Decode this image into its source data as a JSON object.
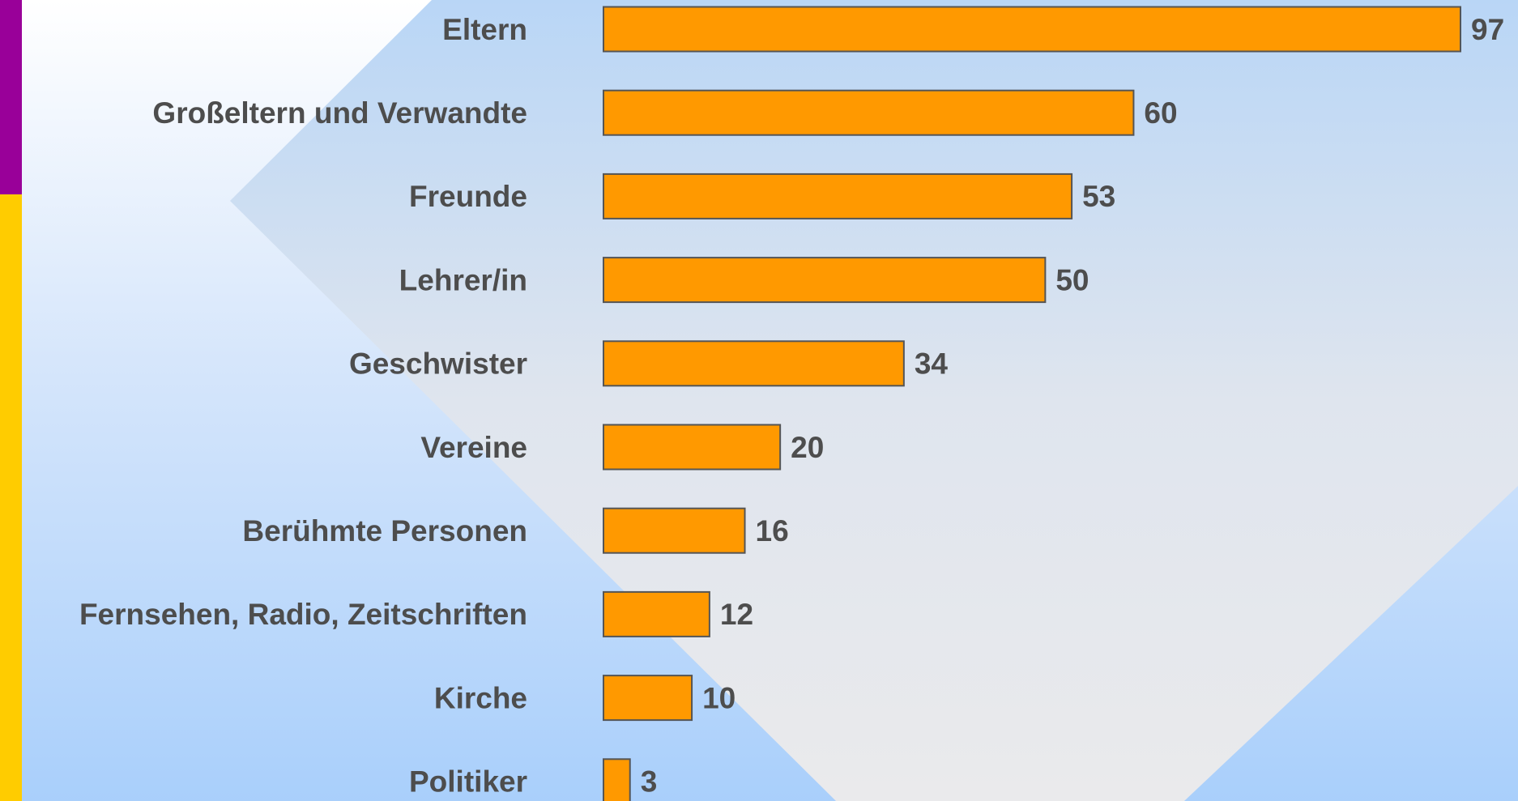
{
  "chart_data": {
    "type": "bar",
    "orientation": "horizontal",
    "categories": [
      "Eltern",
      "Großeltern und Verwandte",
      "Freunde",
      "Lehrer/in",
      "Geschwister",
      "Vereine",
      "Berühmte Personen",
      "Fernsehen, Radio, Zeitschriften",
      "Kirche",
      "Politiker"
    ],
    "values": [
      97,
      60,
      53,
      50,
      34,
      20,
      16,
      12,
      10,
      3
    ],
    "color": "#ff9900"
  }
}
